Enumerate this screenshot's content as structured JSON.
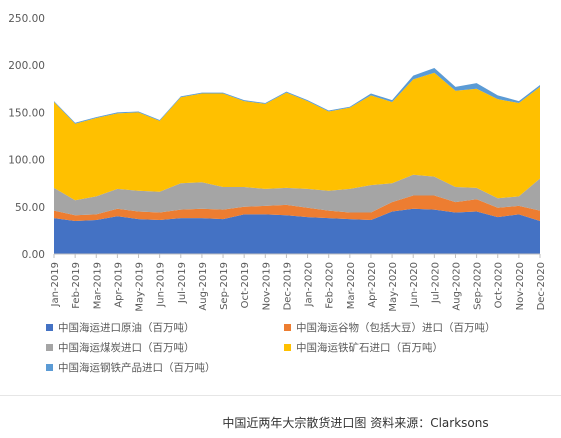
{
  "caption": "中国近两年大宗散货进口图 资料来源：Clarksons",
  "colors": {
    "crude_oil": "#4472C4",
    "grain": "#ED7D31",
    "coal": "#A5A5A5",
    "iron_ore": "#FFC000",
    "steel": "#5B9BD5"
  },
  "chart_data": {
    "type": "area",
    "stacked": true,
    "title": "",
    "xlabel": "",
    "ylabel": "",
    "ylim": [
      0,
      250
    ],
    "yticks": [
      "0.00",
      "50.00",
      "100.00",
      "150.00",
      "200.00",
      "250.00"
    ],
    "grid": false,
    "legend_position": "bottom",
    "categories": [
      "Jan-2019",
      "Feb-2019",
      "Mar-2019",
      "Apr-2019",
      "May-2019",
      "Jun-2019",
      "Jul-2019",
      "Aug-2019",
      "Sep-2019",
      "Oct-2019",
      "Nov-2019",
      "Dec-2019",
      "Jan-2020",
      "Feb-2020",
      "Mar-2020",
      "Apr-2020",
      "May-2020",
      "Jun-2020",
      "Jul-2020",
      "Aug-2020",
      "Sep-2020",
      "Oct-2020",
      "Nov-2020",
      "Dec-2020"
    ],
    "series": [
      {
        "name": "中国海运进口原油（百万吨）",
        "key": "crude_oil",
        "values": [
          38,
          35,
          36,
          40,
          37,
          36,
          38,
          38,
          37,
          42,
          42,
          41,
          39,
          38,
          37,
          36,
          45,
          48,
          47,
          44,
          45,
          39,
          42,
          35
        ]
      },
      {
        "name": "中国海运谷物（包括大豆）进口（百万吨）",
        "key": "grain",
        "values": [
          8,
          6,
          6,
          8,
          8,
          8,
          9,
          10,
          10,
          8,
          9,
          11,
          10,
          8,
          7,
          8,
          10,
          14,
          15,
          11,
          13,
          10,
          9,
          11
        ]
      },
      {
        "name": "中国海运煤炭进口（百万吨）",
        "key": "coal",
        "values": [
          24,
          16,
          19,
          21,
          22,
          22,
          28,
          28,
          24,
          21,
          18,
          18,
          20,
          21,
          25,
          29,
          20,
          22,
          20,
          16,
          12,
          10,
          10,
          34
        ]
      },
      {
        "name": "中国海运铁矿石进口（百万吨）",
        "key": "iron_ore",
        "values": [
          91,
          81,
          83,
          80,
          83,
          75,
          91,
          94,
          99,
          91,
          90,
          101,
          93,
          84,
          86,
          95,
          86,
          101,
          110,
          102,
          105,
          105,
          99,
          97
        ]
      },
      {
        "name": "中国海运钢铁产品进口（百万吨）",
        "key": "steel",
        "values": [
          1,
          1,
          1,
          1,
          1,
          1,
          1,
          1,
          1,
          1,
          1,
          1,
          1,
          1,
          1,
          2,
          2,
          4,
          5,
          4,
          6,
          4,
          2,
          2
        ]
      }
    ]
  },
  "legend_layout": [
    [
      "crude_oil",
      "grain"
    ],
    [
      "coal",
      "iron_ore"
    ],
    [
      "steel"
    ]
  ]
}
